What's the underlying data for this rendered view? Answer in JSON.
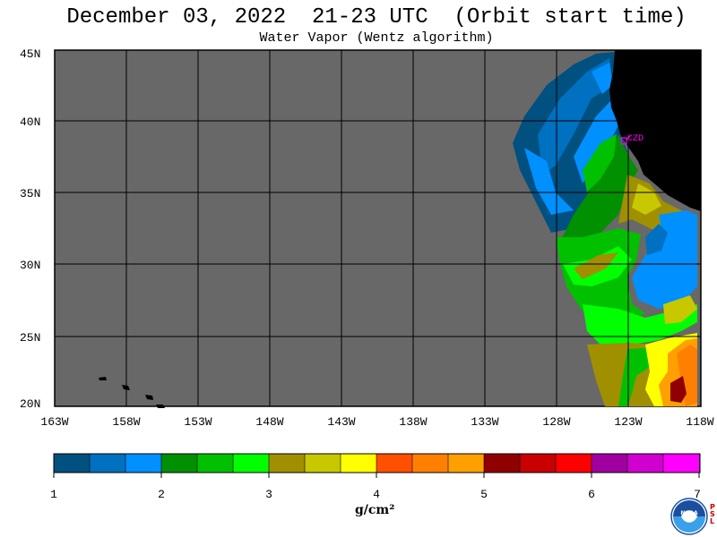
{
  "header": {
    "title": "December 03, 2022  21-23 UTC  (Orbit start time)",
    "subtitle": "Water Vapor (Wentz algorithm)"
  },
  "map": {
    "lat_labels": [
      "45N",
      "40N",
      "35N",
      "30N",
      "25N",
      "20N"
    ],
    "lon_labels": [
      "163W",
      "158W",
      "153W",
      "148W",
      "143W",
      "138W",
      "133W",
      "128W",
      "123W",
      "118W"
    ],
    "lat_range": [
      20,
      45
    ],
    "lon_range": [
      -163,
      -118
    ],
    "station_label": "CZD",
    "colors": {
      "no_data": "#686868",
      "land": "#000000",
      "grid": "#000000",
      "station": "#ff00ff"
    }
  },
  "colorbar": {
    "ticks": [
      "1",
      "2",
      "3",
      "4",
      "5",
      "6",
      "7"
    ],
    "colors": [
      "#005080",
      "#0070c0",
      "#0090ff",
      "#009000",
      "#00c000",
      "#00ff00",
      "#a09000",
      "#c8c800",
      "#ffff00",
      "#ff5000",
      "#ff8000",
      "#ffa000",
      "#900000",
      "#c80000",
      "#ff0000",
      "#a000a0",
      "#d000d0",
      "#ff00ff"
    ],
    "units": "g/cm²"
  },
  "logo": {
    "name": "NOAA",
    "side_text": "PSL"
  }
}
